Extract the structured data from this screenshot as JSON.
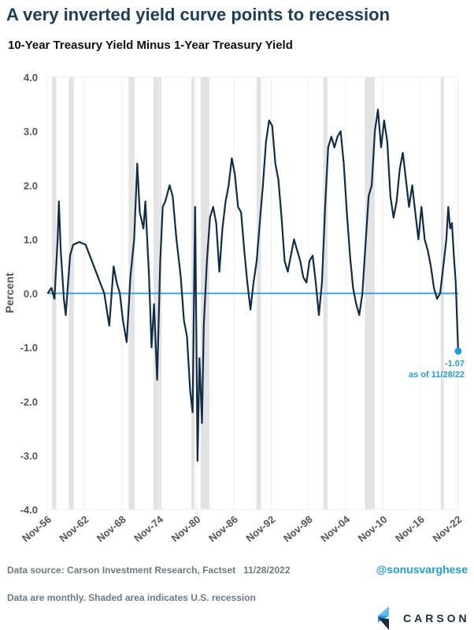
{
  "header": {
    "title": "A very inverted yield curve points to recession",
    "subtitle": "10-Year Treasury Yield Minus 1-Year Treasury Yield"
  },
  "footer": {
    "source": "Data source: Carson Investment Research, Factset   11/28/2022",
    "note": "Data are monthly. Shaded area indicates U.S. recession",
    "handle": "@sonusvarghese",
    "logo": "CARSON"
  },
  "colors": {
    "line": "#0f2d4a",
    "zero": "#1a9fe6",
    "recession": "#e3e3e3",
    "annotation": "#1a9fe6"
  },
  "chart_data": {
    "type": "line",
    "title": "10-Year Treasury Yield Minus 1-Year Treasury Yield",
    "ylabel": "Percent",
    "xlabel": "",
    "ylim": [
      -4,
      4
    ],
    "xlim": [
      1956.83,
      2022.91
    ],
    "yticks": [
      4,
      3,
      2,
      1,
      0,
      -1,
      -2,
      -3,
      -4
    ],
    "ytick_labels": [
      "4.0",
      "3.0",
      "2.0",
      "1.0",
      "0.0",
      "-1.0",
      "-2.0",
      "-3.0",
      "-4.0"
    ],
    "xticks": [
      1956.83,
      1962.83,
      1968.83,
      1974.83,
      1980.83,
      1986.83,
      1992.83,
      1998.83,
      2004.83,
      2010.83,
      2016.83,
      2022.83
    ],
    "xtick_labels": [
      "Nov-56",
      "Nov-62",
      "Nov-68",
      "Nov-74",
      "Nov-80",
      "Nov-86",
      "Nov-92",
      "Nov-98",
      "Nov-04",
      "Nov-10",
      "Nov-16",
      "Nov-22"
    ],
    "recessions": [
      [
        1957.6,
        1958.3
      ],
      [
        1960.3,
        1961.1
      ],
      [
        1969.9,
        1970.9
      ],
      [
        1973.9,
        1975.2
      ],
      [
        1980.0,
        1980.5
      ],
      [
        1981.5,
        1982.9
      ],
      [
        1990.5,
        1991.2
      ],
      [
        2001.2,
        2001.9
      ],
      [
        2007.9,
        2009.5
      ],
      [
        2020.1,
        2020.3
      ]
    ],
    "series": [
      {
        "name": "10Y-1Y spread",
        "x": [
          1956.9,
          1957.5,
          1958.0,
          1958.5,
          1958.7,
          1959.0,
          1959.5,
          1959.8,
          1960.5,
          1961.0,
          1962.0,
          1963.0,
          1964.0,
          1965.0,
          1966.0,
          1966.8,
          1967.5,
          1968.0,
          1968.5,
          1969.0,
          1969.6,
          1970.2,
          1970.8,
          1971.3,
          1971.7,
          1972.3,
          1972.6,
          1973.2,
          1973.6,
          1974.0,
          1974.5,
          1975.0,
          1975.4,
          1975.8,
          1976.5,
          1977.0,
          1977.6,
          1978.3,
          1978.8,
          1979.3,
          1979.8,
          1980.2,
          1980.6,
          1981.0,
          1981.3,
          1981.7,
          1982.0,
          1982.5,
          1983.0,
          1983.5,
          1984.0,
          1984.5,
          1985.0,
          1985.5,
          1986.0,
          1986.5,
          1987.0,
          1987.5,
          1988.0,
          1988.5,
          1989.0,
          1989.5,
          1990.0,
          1990.5,
          1991.0,
          1991.5,
          1992.0,
          1992.5,
          1993.0,
          1993.5,
          1994.0,
          1994.5,
          1995.0,
          1995.5,
          1996.0,
          1996.5,
          1997.0,
          1997.5,
          1998.0,
          1998.5,
          1999.0,
          1999.5,
          2000.0,
          2000.5,
          2001.0,
          2001.5,
          2002.0,
          2002.5,
          2003.0,
          2003.5,
          2004.0,
          2004.5,
          2005.0,
          2005.5,
          2006.0,
          2006.5,
          2007.0,
          2007.5,
          2008.0,
          2008.5,
          2009.0,
          2009.5,
          2010.0,
          2010.5,
          2011.0,
          2011.5,
          2012.0,
          2012.5,
          2013.0,
          2013.5,
          2014.0,
          2014.5,
          2015.0,
          2015.5,
          2016.0,
          2016.5,
          2017.0,
          2017.5,
          2018.0,
          2018.5,
          2019.0,
          2019.5,
          2020.0,
          2020.5,
          2021.0,
          2021.3,
          2021.6,
          2021.9,
          2022.2,
          2022.5,
          2022.9
        ],
        "values": [
          0.0,
          0.1,
          -0.1,
          1.0,
          1.7,
          0.8,
          -0.1,
          -0.4,
          0.7,
          0.9,
          0.95,
          0.9,
          0.6,
          0.3,
          0.0,
          -0.6,
          0.5,
          0.2,
          0.0,
          -0.5,
          -0.9,
          0.3,
          1.0,
          2.4,
          1.5,
          1.2,
          1.7,
          0.3,
          -1.0,
          -0.2,
          -1.6,
          0.6,
          1.6,
          1.7,
          2.0,
          1.8,
          1.0,
          0.3,
          -0.5,
          -0.8,
          -1.8,
          -2.2,
          1.6,
          -3.1,
          -1.2,
          -2.4,
          -0.6,
          0.6,
          1.4,
          1.6,
          1.3,
          0.4,
          1.2,
          1.7,
          2.0,
          2.5,
          2.2,
          1.6,
          1.5,
          0.8,
          0.2,
          -0.3,
          0.2,
          0.6,
          1.3,
          2.0,
          2.8,
          3.2,
          3.1,
          2.4,
          2.1,
          1.4,
          0.6,
          0.4,
          0.7,
          1.0,
          0.8,
          0.6,
          0.3,
          0.2,
          0.6,
          0.7,
          0.2,
          -0.4,
          0.2,
          1.6,
          2.7,
          2.9,
          2.7,
          2.9,
          3.0,
          2.4,
          1.5,
          0.7,
          0.1,
          -0.2,
          -0.4,
          0.0,
          0.9,
          1.8,
          2.0,
          3.0,
          3.4,
          2.7,
          3.2,
          2.8,
          1.8,
          1.4,
          1.7,
          2.3,
          2.6,
          2.1,
          1.6,
          2.0,
          1.5,
          1.0,
          1.6,
          1.0,
          0.8,
          0.5,
          0.1,
          -0.1,
          0.0,
          0.5,
          1.0,
          1.6,
          1.2,
          1.3,
          0.7,
          0.2,
          -1.07
        ]
      }
    ],
    "annotation": {
      "value": "-1.07",
      "label": "as of 11/28/22"
    }
  }
}
